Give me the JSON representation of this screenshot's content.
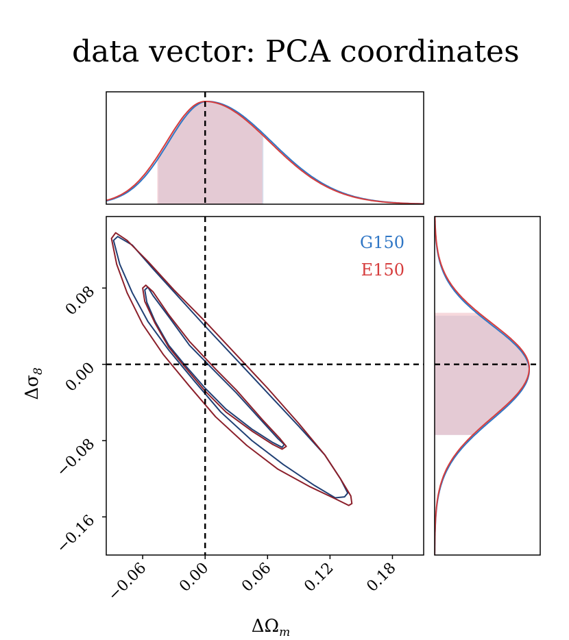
{
  "chart_data": {
    "type": "corner",
    "title": "data vector: PCA coordinates",
    "xlabel": "ΔΩ",
    "xlabel_sub": "m",
    "ylabel": "Δσ",
    "ylabel_sub": "8",
    "xlim": [
      -0.095,
      0.21
    ],
    "ylim": [
      -0.2,
      0.155
    ],
    "xticks": [
      -0.06,
      0.0,
      0.06,
      0.12,
      0.18
    ],
    "xtick_labels": [
      "−0.06",
      "0.00",
      "0.06",
      "0.12",
      "0.18"
    ],
    "yticks": [
      -0.16,
      -0.08,
      0.0,
      0.08
    ],
    "ytick_labels": [
      "−0.16",
      "−0.08",
      "0.00",
      "0.08"
    ],
    "fiducial": {
      "x": 0.0,
      "y": 0.0
    },
    "colors": {
      "G150": "#2f76c5",
      "E150": "#d63d3d",
      "G150_contour": "#1f3f74",
      "E150_contour": "#8b1f2a",
      "band": "#c7abbb"
    },
    "series": [
      {
        "name": "G150",
        "marginal_x": {
          "mode": 0.002,
          "sigma_left": 0.037,
          "sigma_right": 0.062,
          "band": [
            -0.045,
            0.056
          ]
        },
        "marginal_y": {
          "mode": -0.006,
          "sigma_low": 0.052,
          "sigma_high": 0.047,
          "band": [
            -0.074,
            0.051
          ]
        },
        "contours": [
          {
            "level": "68%",
            "points": [
              [
                -0.058,
                0.078
              ],
              [
                -0.055,
                0.081
              ],
              [
                -0.05,
                0.072
              ],
              [
                -0.035,
                0.05
              ],
              [
                -0.015,
                0.02
              ],
              [
                0.01,
                -0.008
              ],
              [
                0.03,
                -0.03
              ],
              [
                0.055,
                -0.06
              ],
              [
                0.07,
                -0.078
              ],
              [
                0.076,
                -0.084
              ],
              [
                0.074,
                -0.087
              ],
              [
                0.065,
                -0.082
              ],
              [
                0.045,
                -0.068
              ],
              [
                0.02,
                -0.047
              ],
              [
                0.0,
                -0.025
              ],
              [
                -0.02,
                0.0
              ],
              [
                -0.035,
                0.02
              ],
              [
                -0.048,
                0.045
              ],
              [
                -0.056,
                0.065
              ],
              [
                -0.058,
                0.078
              ]
            ]
          },
          {
            "level": "95%",
            "points": [
              [
                -0.088,
                0.13
              ],
              [
                -0.084,
                0.134
              ],
              [
                -0.07,
                0.125
              ],
              [
                -0.05,
                0.1
              ],
              [
                -0.025,
                0.07
              ],
              [
                0.0,
                0.04
              ],
              [
                0.03,
                0.005
              ],
              [
                0.06,
                -0.03
              ],
              [
                0.09,
                -0.065
              ],
              [
                0.115,
                -0.095
              ],
              [
                0.13,
                -0.12
              ],
              [
                0.137,
                -0.135
              ],
              [
                0.134,
                -0.139
              ],
              [
                0.125,
                -0.14
              ],
              [
                0.105,
                -0.127
              ],
              [
                0.075,
                -0.105
              ],
              [
                0.045,
                -0.08
              ],
              [
                0.015,
                -0.05
              ],
              [
                -0.01,
                -0.018
              ],
              [
                -0.035,
                0.015
              ],
              [
                -0.055,
                0.045
              ],
              [
                -0.07,
                0.075
              ],
              [
                -0.082,
                0.105
              ],
              [
                -0.088,
                0.13
              ]
            ]
          }
        ]
      },
      {
        "name": "E150",
        "marginal_x": {
          "mode": 0.0,
          "sigma_left": 0.037,
          "sigma_right": 0.062,
          "band": [
            -0.046,
            0.055
          ]
        },
        "marginal_y": {
          "mode": -0.004,
          "sigma_low": 0.052,
          "sigma_high": 0.047,
          "band": [
            -0.074,
            0.054
          ]
        },
        "contours": [
          {
            "level": "68%",
            "points": [
              [
                -0.06,
                0.08
              ],
              [
                -0.057,
                0.083
              ],
              [
                -0.05,
                0.076
              ],
              [
                -0.035,
                0.052
              ],
              [
                -0.015,
                0.024
              ],
              [
                0.01,
                -0.005
              ],
              [
                0.03,
                -0.027
              ],
              [
                0.055,
                -0.058
              ],
              [
                0.072,
                -0.078
              ],
              [
                0.078,
                -0.086
              ],
              [
                0.074,
                -0.089
              ],
              [
                0.065,
                -0.084
              ],
              [
                0.045,
                -0.07
              ],
              [
                0.02,
                -0.05
              ],
              [
                0.0,
                -0.028
              ],
              [
                -0.02,
                -0.002
              ],
              [
                -0.035,
                0.018
              ],
              [
                -0.048,
                0.043
              ],
              [
                -0.058,
                0.066
              ],
              [
                -0.06,
                0.08
              ]
            ]
          },
          {
            "level": "95%",
            "points": [
              [
                -0.09,
                0.132
              ],
              [
                -0.086,
                0.138
              ],
              [
                -0.075,
                0.13
              ],
              [
                -0.055,
                0.108
              ],
              [
                -0.03,
                0.078
              ],
              [
                0.0,
                0.045
              ],
              [
                0.03,
                0.01
              ],
              [
                0.06,
                -0.025
              ],
              [
                0.09,
                -0.062
              ],
              [
                0.115,
                -0.095
              ],
              [
                0.13,
                -0.12
              ],
              [
                0.14,
                -0.138
              ],
              [
                0.141,
                -0.146
              ],
              [
                0.138,
                -0.148
              ],
              [
                0.125,
                -0.141
              ],
              [
                0.1,
                -0.128
              ],
              [
                0.07,
                -0.11
              ],
              [
                0.04,
                -0.085
              ],
              [
                0.01,
                -0.055
              ],
              [
                -0.015,
                -0.023
              ],
              [
                -0.04,
                0.01
              ],
              [
                -0.06,
                0.042
              ],
              [
                -0.075,
                0.075
              ],
              [
                -0.085,
                0.105
              ],
              [
                -0.09,
                0.132
              ]
            ]
          }
        ]
      }
    ]
  }
}
